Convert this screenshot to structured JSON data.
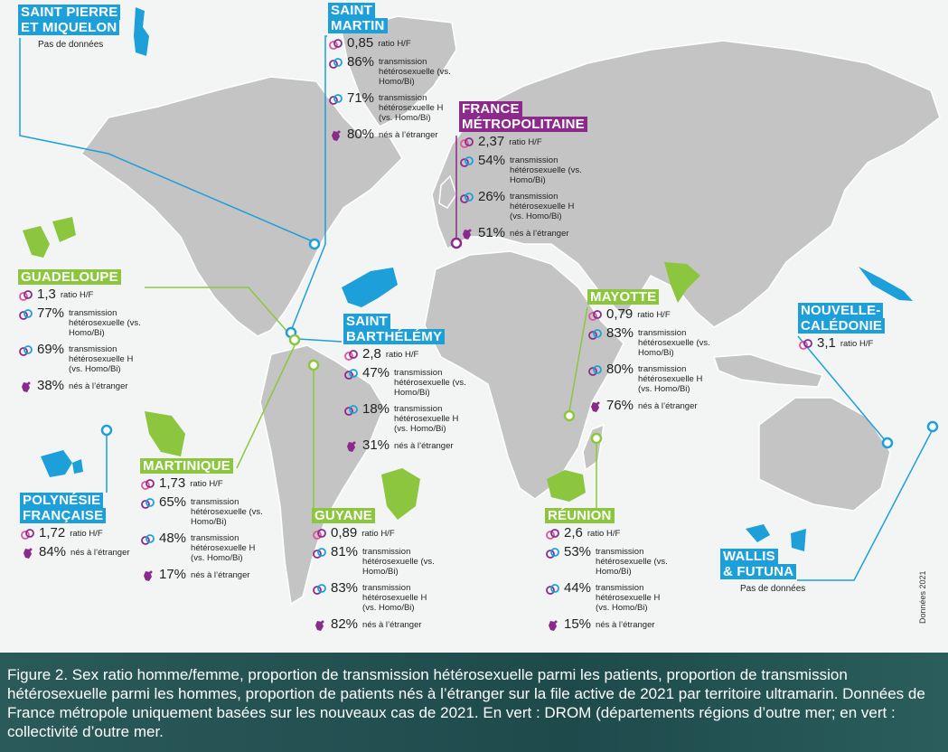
{
  "territories": [
    {
      "name": [
        "SAINT PIERRE",
        "ET MIQUELON"
      ],
      "color": "#1d9fd9",
      "note": "Pas de données"
    },
    {
      "name": [
        "SAINT",
        "MARTIN"
      ],
      "color": "#1d9fd9",
      "stats": [
        {
          "value": "0,85",
          "label": "ratio H/F"
        },
        {
          "value": "86%",
          "label": "transmission hétérosexuelle (vs. Homo/Bi)"
        },
        {
          "value": "71%",
          "label": "transmission hétérosexuelle H (vs. Homo/Bi)"
        },
        {
          "value": "80%",
          "label": "nés à l’étranger"
        }
      ]
    },
    {
      "name": [
        "FRANCE",
        "MÉTROPOLITAINE"
      ],
      "color": "#8b2a8b",
      "stats": [
        {
          "value": "2,37",
          "label": "ratio H/F"
        },
        {
          "value": "54%",
          "label": "transmission hétérosexuelle (vs. Homo/Bi)"
        },
        {
          "value": "26%",
          "label": "transmission hétérosexuelle H (vs. Homo/Bi)"
        },
        {
          "value": "51%",
          "label": "nés à l’étranger"
        }
      ]
    },
    {
      "name": [
        "GUADELOUPE"
      ],
      "color": "#8cc63f",
      "stats": [
        {
          "value": "1,3",
          "label": "ratio H/F"
        },
        {
          "value": "77%",
          "label": "transmission hétérosexuelle (vs. Homo/Bi)"
        },
        {
          "value": "69%",
          "label": "transmission hétérosexuelle H (vs. Homo/Bi)"
        },
        {
          "value": "38%",
          "label": "nés à l’étranger"
        }
      ]
    },
    {
      "name": [
        "SAINT",
        "BARTHÉLÉMY"
      ],
      "color": "#1d9fd9",
      "stats": [
        {
          "value": "2,8",
          "label": "ratio H/F"
        },
        {
          "value": "47%",
          "label": "transmission hétérosexuelle (vs. Homo/Bi)"
        },
        {
          "value": "18%",
          "label": "transmission hétérosexuelle H (vs. Homo/Bi)"
        },
        {
          "value": "31%",
          "label": "nés à l’étranger"
        }
      ]
    },
    {
      "name": [
        "MARTINIQUE"
      ],
      "color": "#8cc63f",
      "stats": [
        {
          "value": "1,73",
          "label": "ratio H/F"
        },
        {
          "value": "65%",
          "label": "transmission hétérosexuelle (vs. Homo/Bi)"
        },
        {
          "value": "48%",
          "label": "transmission hétérosexuelle H (vs. Homo/Bi)"
        },
        {
          "value": "17%",
          "label": "nés à l’étranger"
        }
      ]
    },
    {
      "name": [
        "POLYNÉSIE",
        "FRANÇAISE"
      ],
      "color": "#1d9fd9",
      "stats": [
        {
          "value": "1,72",
          "label": "ratio H/F"
        },
        {
          "value": "84%",
          "label": "nés à l’étranger"
        }
      ]
    },
    {
      "name": [
        "GUYANE"
      ],
      "color": "#8cc63f",
      "stats": [
        {
          "value": "0,89",
          "label": "ratio H/F"
        },
        {
          "value": "81%",
          "label": "transmission hétérosexuelle (vs. Homo/Bi)"
        },
        {
          "value": "83%",
          "label": "transmission hétérosexuelle H (vs. Homo/Bi)"
        },
        {
          "value": "82%",
          "label": "nés à l’étranger"
        }
      ]
    },
    {
      "name": [
        "MAYOTTE"
      ],
      "color": "#8cc63f",
      "stats": [
        {
          "value": "0,79",
          "label": "ratio H/F"
        },
        {
          "value": "83%",
          "label": "transmission hétérosexuelle (vs. Homo/Bi)"
        },
        {
          "value": "80%",
          "label": "transmission hétérosexuelle H (vs. Homo/Bi)"
        },
        {
          "value": "76%",
          "label": "nés à l’étranger"
        }
      ]
    },
    {
      "name": [
        "RÉUNION"
      ],
      "color": "#8cc63f",
      "stats": [
        {
          "value": "2,6",
          "label": "ratio H/F"
        },
        {
          "value": "53%",
          "label": "transmission hétérosexuelle (vs. Homo/Bi)"
        },
        {
          "value": "44%",
          "label": "transmission hétérosexuelle H (vs. Homo/Bi)"
        },
        {
          "value": "15%",
          "label": "nés à l’étranger"
        }
      ]
    },
    {
      "name": [
        "NOUVELLE-",
        "CALÉDONIE"
      ],
      "color": "#1d9fd9",
      "stats": [
        {
          "value": "3,1",
          "label": "ratio H/F"
        }
      ]
    },
    {
      "name": [
        "WALLIS",
        "& FUTUNA"
      ],
      "color": "#1d9fd9",
      "note": "Pas de données"
    }
  ],
  "source": "Données 2021",
  "caption": "Figure 2. Sex ratio homme/femme, proportion de transmission hétérosexuelle parmi les patients, proportion de transmission hétérosexuelle parmi les hommes, proportion de patients nés à l’étranger sur la file active de 2021 par territoire ultramarin. Données de France métropole uniquement basées sur les nouveaux cas de 2021. En vert : DROM (départements régions d’outre mer; en vert : collectivité d’outre mer."
}
